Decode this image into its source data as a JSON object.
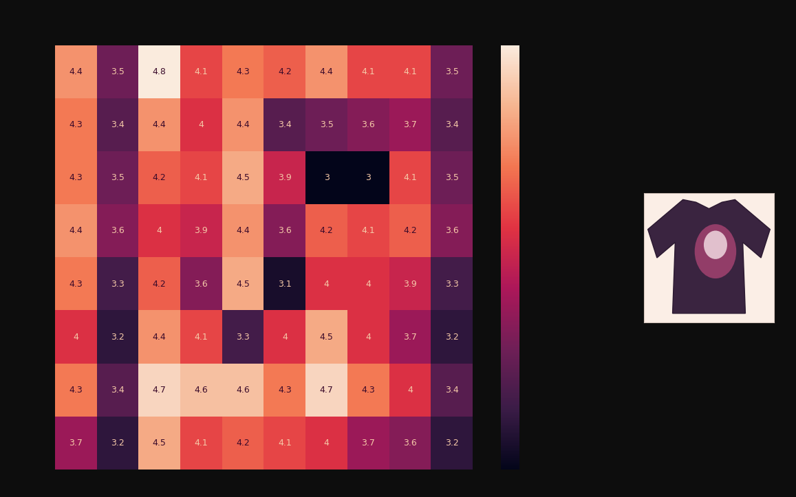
{
  "chart_data": {
    "type": "heatmap",
    "tick_labels": false,
    "data_labels": true,
    "cells": [
      [
        4.4,
        3.5,
        4.8,
        4.1,
        4.3,
        4.2,
        4.4,
        4.1,
        4.1,
        3.5
      ],
      [
        4.3,
        3.4,
        4.4,
        4,
        4.4,
        3.4,
        3.5,
        3.6,
        3.7,
        3.4
      ],
      [
        4.3,
        3.5,
        4.2,
        4.1,
        4.5,
        3.9,
        3,
        3,
        4.1,
        3.5
      ],
      [
        4.4,
        3.6,
        4,
        3.9,
        4.4,
        3.6,
        4.2,
        4.1,
        4.2,
        3.6
      ],
      [
        4.3,
        3.3,
        4.2,
        3.6,
        4.5,
        3.1,
        4,
        4,
        3.9,
        3.3
      ],
      [
        4,
        3.2,
        4.4,
        4.1,
        3.3,
        4,
        4.5,
        4,
        3.7,
        3.2
      ],
      [
        4.3,
        3.4,
        4.7,
        4.6,
        4.6,
        4.3,
        4.7,
        4.3,
        4,
        3.4
      ],
      [
        3.7,
        3.2,
        4.5,
        4.1,
        4.2,
        4.1,
        4,
        3.7,
        3.6,
        3.2
      ]
    ],
    "colorbar_range": [
      3,
      4.8
    ]
  }
}
